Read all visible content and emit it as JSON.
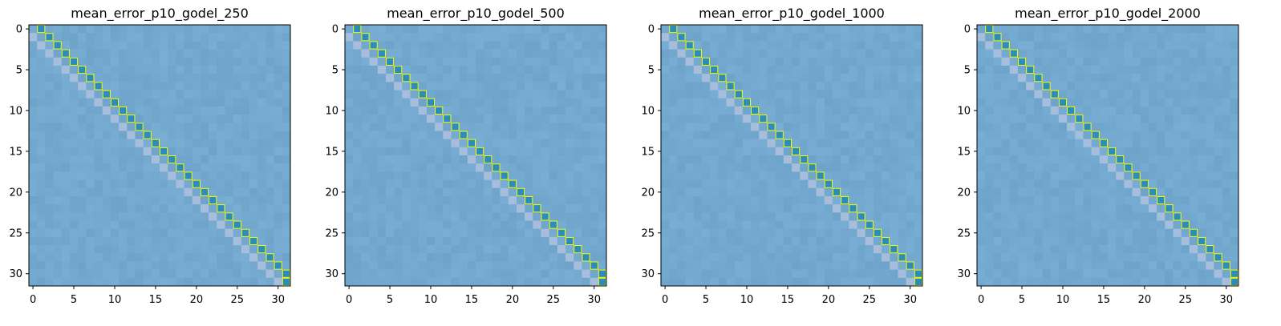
{
  "chart_data": [
    {
      "type": "heatmap",
      "title": "mean_error_p10_godel_250",
      "xlabel": "",
      "ylabel": "",
      "xlim": [
        -0.5,
        31.5
      ],
      "ylim": [
        31.5,
        -0.5
      ],
      "xticks": [
        0,
        5,
        10,
        15,
        20,
        25,
        30
      ],
      "yticks": [
        0,
        5,
        10,
        15,
        20,
        25,
        30
      ],
      "size": 32,
      "background_color": "#74a9cf",
      "lower_diagonal_color": "#a6bddb",
      "highlight_cell_color": "#2b8cbe",
      "highlight_outline_color": "#ffff00",
      "highlight_cells": "(i, i+1) for i in 0..30, plus (31, 31)"
    },
    {
      "type": "heatmap",
      "title": "mean_error_p10_godel_500",
      "xlabel": "",
      "ylabel": "",
      "xlim": [
        -0.5,
        31.5
      ],
      "ylim": [
        31.5,
        -0.5
      ],
      "xticks": [
        0,
        5,
        10,
        15,
        20,
        25,
        30
      ],
      "yticks": [
        0,
        5,
        10,
        15,
        20,
        25,
        30
      ],
      "size": 32,
      "background_color": "#74a9cf",
      "lower_diagonal_color": "#a6bddb",
      "highlight_cell_color": "#2b8cbe",
      "highlight_outline_color": "#ffff00",
      "highlight_cells": "(i, i+1) for i in 0..30, plus (31, 31)"
    },
    {
      "type": "heatmap",
      "title": "mean_error_p10_godel_1000",
      "xlabel": "",
      "ylabel": "",
      "xlim": [
        -0.5,
        31.5
      ],
      "ylim": [
        31.5,
        -0.5
      ],
      "xticks": [
        0,
        5,
        10,
        15,
        20,
        25,
        30
      ],
      "yticks": [
        0,
        5,
        10,
        15,
        20,
        25,
        30
      ],
      "size": 32,
      "background_color": "#74a9cf",
      "lower_diagonal_color": "#a6bddb",
      "highlight_cell_color": "#2b8cbe",
      "highlight_outline_color": "#ffff00",
      "highlight_cells": "(i, i+1) for i in 0..30, plus (31, 31)"
    },
    {
      "type": "heatmap",
      "title": "mean_error_p10_godel_2000",
      "xlabel": "",
      "ylabel": "",
      "xlim": [
        -0.5,
        31.5
      ],
      "ylim": [
        31.5,
        -0.5
      ],
      "xticks": [
        0,
        5,
        10,
        15,
        20,
        25,
        30
      ],
      "yticks": [
        0,
        5,
        10,
        15,
        20,
        25,
        30
      ],
      "size": 32,
      "background_color": "#74a9cf",
      "lower_diagonal_color": "#a6bddb",
      "highlight_cell_color": "#2b8cbe",
      "highlight_outline_color": "#ffff00",
      "highlight_cells": "(i, i+1) for i in 0..30, plus (31, 31)"
    }
  ]
}
